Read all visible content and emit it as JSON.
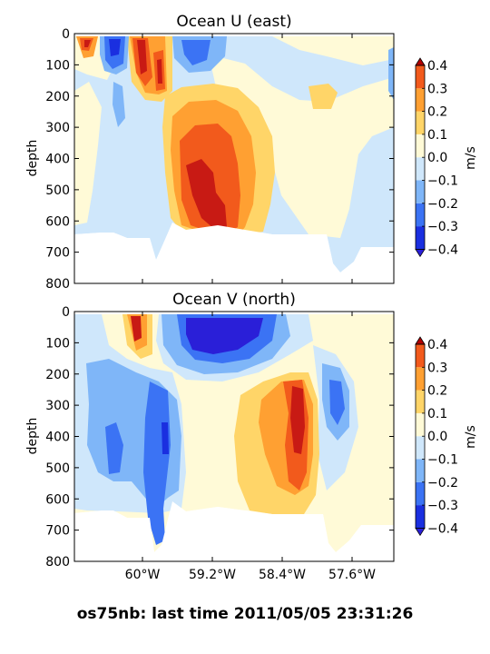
{
  "footer": "os75nb: last time 2011/05/05 23:31:26",
  "chart_data": [
    {
      "type": "heatmap",
      "title": "Ocean U (east)",
      "ylabel": "depth",
      "ylim": [
        0,
        800
      ],
      "y_inverted": true,
      "yticks": [
        0,
        100,
        200,
        300,
        400,
        500,
        600,
        700,
        800
      ],
      "x_ticklabels": [],
      "colorbar": {
        "label": "m/s",
        "range": [
          -0.4,
          0.4
        ],
        "ticks": [
          "0.4",
          "0.3",
          "0.2",
          "0.1",
          "0.0",
          "−0.1",
          "−0.2",
          "−0.3",
          "−0.4"
        ]
      },
      "x_range_approx_deg_W": [
        60.7,
        57.3
      ],
      "regions": [
        {
          "lon": [
            -60.7,
            -58.4
          ],
          "depth": [
            0,
            700
          ],
          "value": "−0.05"
        },
        {
          "lon": [
            -60.05,
            -59.75
          ],
          "depth": [
            0,
            110
          ],
          "value": "0.45"
        },
        {
          "lon": [
            -59.45,
            -58.7
          ],
          "depth": [
            100,
            650
          ],
          "value": "0.25"
        },
        {
          "lon": [
            -59.3,
            -58.9
          ],
          "depth": [
            350,
            630
          ],
          "value": "0.4"
        },
        {
          "lon": [
            -60.35,
            -60.2
          ],
          "depth": [
            20,
            80
          ],
          "value": "−0.4"
        },
        {
          "lon": [
            -59.1,
            -58.6
          ],
          "depth": [
            10,
            110
          ],
          "value": "−0.15"
        }
      ],
      "colors": {
        "l1": "#1a2fe0",
        "l2": "#3b73f4",
        "l3": "#7fb6f8",
        "l4": "#cfe7fb",
        "p1": "#fffad7",
        "p2": "#ffd568",
        "p3": "#ffa032",
        "p4": "#f25a1c",
        "p5": "#c81a14",
        "extmin": "#2a1fd8",
        "extmax": "#b30000"
      }
    },
    {
      "type": "heatmap",
      "title": "Ocean V (north)",
      "ylabel": "depth",
      "ylim": [
        0,
        800
      ],
      "y_inverted": true,
      "yticks": [
        0,
        100,
        200,
        300,
        400,
        500,
        600,
        700,
        800
      ],
      "x_ticklabels": [
        "60°W",
        "59.2°W",
        "58.4°W",
        "57.6°W"
      ],
      "colorbar": {
        "label": "m/s",
        "range": [
          -0.4,
          0.4
        ],
        "ticks": [
          "0.4",
          "0.3",
          "0.2",
          "0.1",
          "0.0",
          "−0.1",
          "−0.2",
          "−0.3",
          "−0.4"
        ]
      },
      "x_range_approx_deg_W": [
        60.7,
        57.3
      ],
      "regions": [
        {
          "lon": [
            -59.4,
            -58.75
          ],
          "depth": [
            20,
            150
          ],
          "value": "−0.45"
        },
        {
          "lon": [
            -58.2,
            -57.9
          ],
          "depth": [
            150,
            560
          ],
          "value": "0.35"
        },
        {
          "lon": [
            -60.1,
            -59.9
          ],
          "depth": [
            20,
            110
          ],
          "value": "0.4"
        },
        {
          "lon": [
            -59.85,
            -59.7
          ],
          "depth": [
            300,
            650
          ],
          "value": "−0.25"
        },
        {
          "lon": [
            -57.9,
            -57.7
          ],
          "depth": [
            230,
            380
          ],
          "value": "−0.3"
        }
      ]
    }
  ]
}
